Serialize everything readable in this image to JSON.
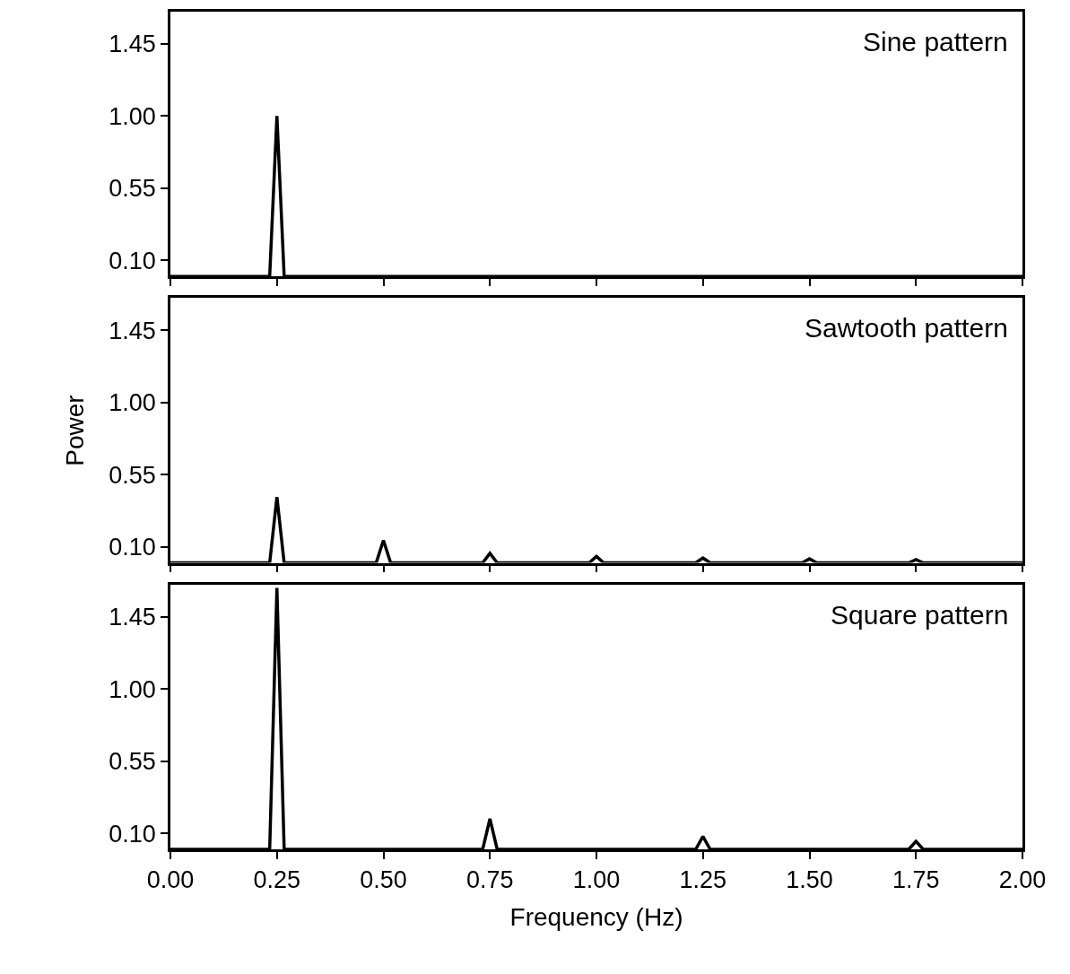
{
  "chart_data": [
    {
      "type": "line",
      "title": "Sine pattern",
      "xlim": [
        0,
        2
      ],
      "xticks": [
        0,
        0.25,
        0.5,
        0.75,
        1,
        1.25,
        1.5,
        1.75,
        2
      ],
      "ylim": [
        0,
        1.65
      ],
      "yticks": [
        {
          "value": 0.1,
          "label": "0.10"
        },
        {
          "value": 0.55,
          "label": "0.55"
        },
        {
          "value": 1.0,
          "label": "1.00"
        },
        {
          "value": 1.45,
          "label": "1.45"
        }
      ],
      "tick_labels": "y",
      "series": [
        {
          "color": "#000000",
          "x": [
            0,
            0.233,
            0.25,
            0.267,
            2
          ],
          "values": [
            0,
            0,
            1.0,
            0,
            0
          ]
        }
      ]
    },
    {
      "type": "line",
      "title": "Sawtooth pattern",
      "ylabel": "Power",
      "xlim": [
        0,
        2
      ],
      "xticks": [
        0,
        0.25,
        0.5,
        0.75,
        1,
        1.25,
        1.5,
        1.75,
        2
      ],
      "ylim": [
        0,
        1.65
      ],
      "yticks": [
        {
          "value": 0.1,
          "label": "0.10"
        },
        {
          "value": 0.55,
          "label": "0.55"
        },
        {
          "value": 1.0,
          "label": "1.00"
        },
        {
          "value": 1.45,
          "label": "1.45"
        }
      ],
      "tick_labels": "y",
      "series": [
        {
          "color": "#000000",
          "x": [
            0,
            0.233,
            0.25,
            0.267,
            0.483,
            0.5,
            0.517,
            0.733,
            0.75,
            0.767,
            0.983,
            1.0,
            1.017,
            1.233,
            1.25,
            1.267,
            1.483,
            1.5,
            1.517,
            1.733,
            1.75,
            1.767,
            2
          ],
          "values": [
            0,
            0,
            0.41,
            0,
            0,
            0.14,
            0,
            0,
            0.06,
            0,
            0,
            0.04,
            0,
            0,
            0.03,
            0,
            0,
            0.025,
            0,
            0,
            0.02,
            0,
            0
          ]
        }
      ]
    },
    {
      "type": "line",
      "title": "Square pattern",
      "xlabel": "Frequency (Hz)",
      "xlim": [
        0,
        2
      ],
      "xticks": [
        {
          "value": 0,
          "label": "0.00"
        },
        {
          "value": 0.25,
          "label": "0.25"
        },
        {
          "value": 0.5,
          "label": "0.50"
        },
        {
          "value": 0.75,
          "label": "0.75"
        },
        {
          "value": 1,
          "label": "1.00"
        },
        {
          "value": 1.25,
          "label": "1.25"
        },
        {
          "value": 1.5,
          "label": "1.50"
        },
        {
          "value": 1.75,
          "label": "1.75"
        },
        {
          "value": 2,
          "label": "2.00"
        }
      ],
      "ylim": [
        0,
        1.65
      ],
      "yticks": [
        {
          "value": 0.1,
          "label": "0.10"
        },
        {
          "value": 0.55,
          "label": "0.55"
        },
        {
          "value": 1.0,
          "label": "1.00"
        },
        {
          "value": 1.45,
          "label": "1.45"
        }
      ],
      "series": [
        {
          "color": "#000000",
          "x": [
            0,
            0.233,
            0.25,
            0.267,
            0.733,
            0.75,
            0.767,
            1.233,
            1.25,
            1.267,
            1.733,
            1.75,
            1.767,
            2
          ],
          "values": [
            0,
            0,
            1.63,
            0,
            0,
            0.19,
            0,
            0,
            0.08,
            0,
            0,
            0.05,
            0,
            0
          ]
        }
      ]
    }
  ]
}
